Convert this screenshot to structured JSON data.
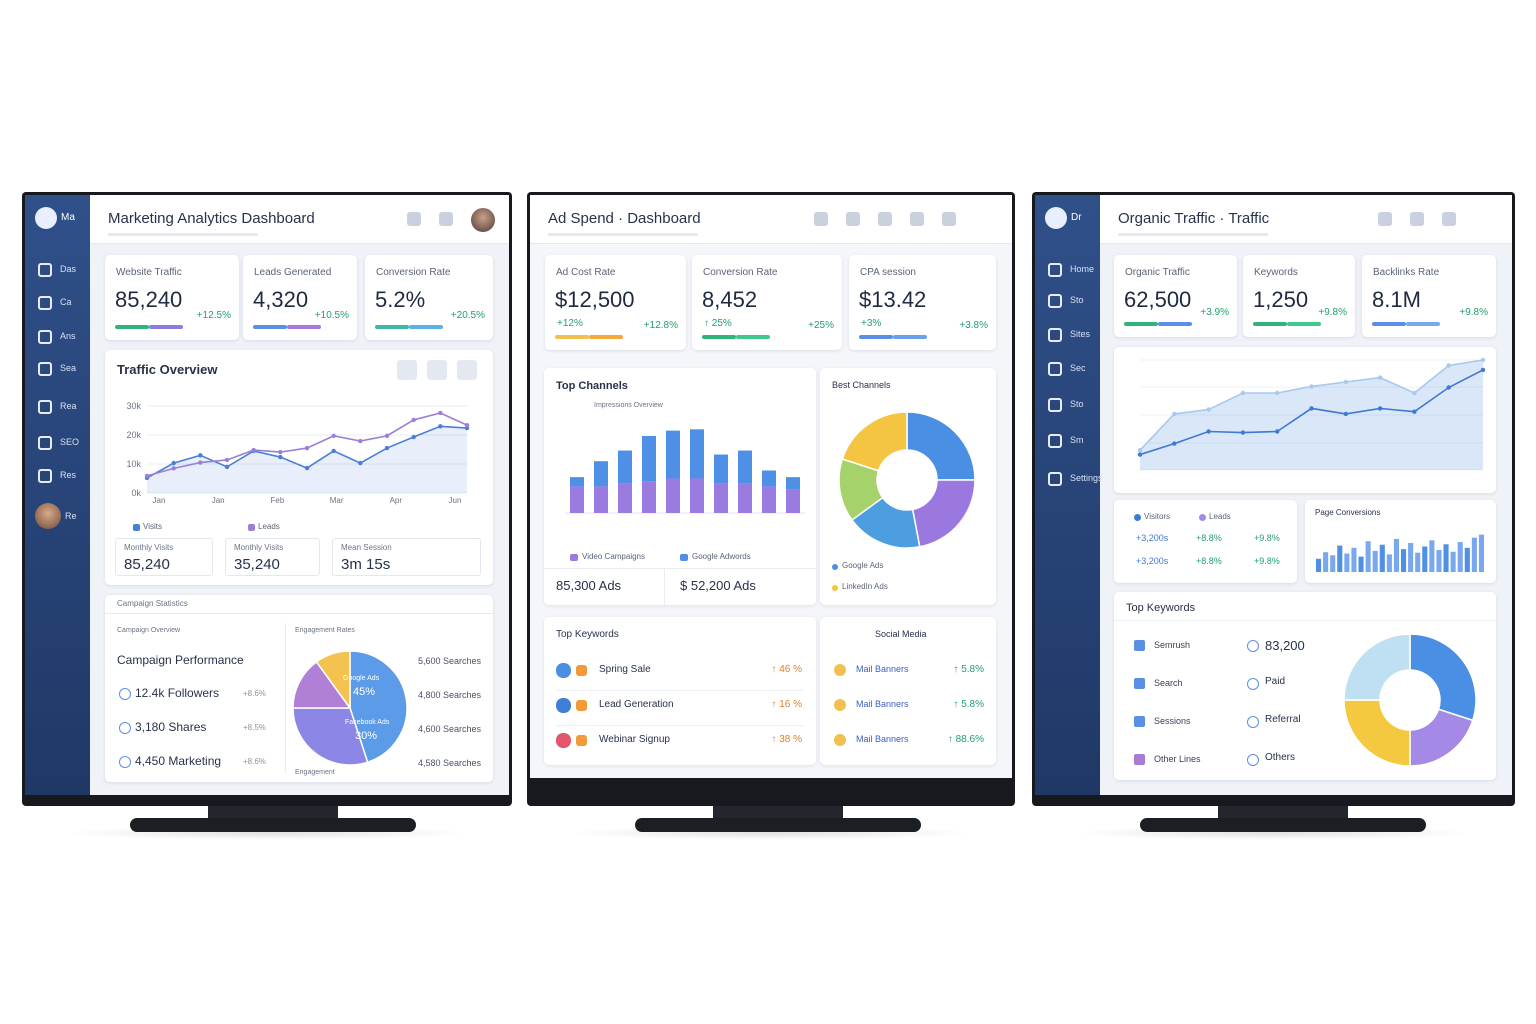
{
  "monitors": [
    {
      "logo": "Ma",
      "nav": [
        "Das",
        "Ca",
        "Ans",
        "Sea",
        "Rea",
        "SEO",
        "Res"
      ],
      "profile": "Re",
      "title": "Marketing Analytics Dashboard",
      "kpis": [
        {
          "label": "Website Traffic",
          "value": "85,240",
          "change": "+12.5%"
        },
        {
          "label": "Leads Generated",
          "value": "4,320",
          "change": "+10.5%"
        },
        {
          "label": "Conversion Rate",
          "value": "5.2%",
          "change": "+20.5%"
        }
      ],
      "traffic": {
        "title": "Traffic Overview",
        "ylim": [
          0,
          30000
        ],
        "yticks": [
          {
            "value": 30000,
            "label": "30k"
          },
          {
            "value": 20000,
            "label": "20k"
          },
          {
            "value": 10000,
            "label": "10k"
          },
          {
            "value": 0,
            "label": "0k"
          }
        ],
        "xlabels": [
          "Jan",
          "Jan",
          "Feb",
          "Mar",
          "Apr",
          "Jun"
        ],
        "series": [
          {
            "name": "Visits",
            "color": "#4a7fd6",
            "values": [
              5200,
              10300,
              13000,
              9000,
              14500,
              12400,
              8600,
              14500,
              10300,
              15500,
              19300,
              23000,
              22400
            ]
          },
          {
            "name": "Leads",
            "color": "#9b7fd8",
            "values": [
              5900,
              8500,
              10500,
              11400,
              14800,
              14100,
              15500,
              19700,
              17900,
              19700,
              25200,
              27600,
              23400
            ]
          }
        ]
      },
      "stats": [
        {
          "label": "Monthly Visits",
          "value": "85,240"
        },
        {
          "label": "Monthly Visits",
          "value": "35,240"
        },
        {
          "label": "Mean Session",
          "value": "3m 15s"
        }
      ],
      "campaign": {
        "header": "Campaign Statistics",
        "subtitle": "Campaign Overview",
        "title": "Campaign Performance",
        "items": [
          "12.4k Followers",
          "3,180 Shares",
          "4,450 Marketing"
        ],
        "item_changes": [
          "+8.6%",
          "+8.5%",
          "+8.6%"
        ],
        "pie_title": "Engagement Rates",
        "pie": {
          "names": [
            "Google Ads",
            "Facebook Ads",
            null,
            null
          ],
          "values": [
            45,
            30,
            15,
            10
          ],
          "value_labels": [
            "45%",
            "30%",
            null,
            null
          ],
          "colors": [
            "#5b9be8",
            "#8c86e6",
            "#b07fd6",
            "#f3c24f"
          ]
        },
        "searches": [
          "5,600 Searches",
          "4,800 Searches",
          "4,600 Searches",
          "4,580 Searches"
        ],
        "footer": "Engagement"
      }
    },
    {
      "title": "Ad Spend · Dashboard",
      "kpis": [
        {
          "label": "Ad Cost Rate",
          "value": "$12,500",
          "sub": "+12%",
          "change": "+12.8%"
        },
        {
          "label": "Conversion Rate",
          "value": "8,452",
          "sub": "↑ 25%",
          "change": "+25%"
        },
        {
          "label": "CPA session",
          "value": "$13.42",
          "sub": "+3%",
          "change": "+3.8%"
        }
      ],
      "channels": {
        "title": "Top Channels",
        "subtitle": "Impressions Overview",
        "ylim": [
          0,
          70
        ],
        "series": [
          {
            "name": "Video Campaigns",
            "color": "#9a7be0",
            "values": [
              20,
              20,
              22,
              24,
              26,
              26,
              22,
              22,
              20,
              18
            ]
          },
          {
            "name": "Google Adwords",
            "color": "#4f8fe6",
            "values": [
              7,
              19,
              25,
              34,
              36,
              37,
              22,
              25,
              12,
              9
            ]
          }
        ],
        "stats": [
          "85,300 Ads",
          "$ 52,200 Ads"
        ]
      },
      "best": {
        "title": "Best Channels",
        "values": [
          25,
          22,
          18,
          15,
          20
        ],
        "colors": [
          "#4a8fe3",
          "#9b78e0",
          "#4c9ee0",
          "#a5d26a",
          "#f4c542"
        ],
        "legend": [
          "Google Ads",
          "LinkedIn Ads"
        ]
      },
      "keywords": {
        "title": "Top Keywords",
        "rows": [
          {
            "name": "Spring Sale",
            "change": "↑ 46 %"
          },
          {
            "name": "Lead Generation",
            "change": "↑ 16 %"
          },
          {
            "name": "Webinar Signup",
            "change": "↑ 38 %"
          }
        ]
      },
      "social": {
        "title": "Social Media",
        "rows": [
          {
            "name": "Mail Banners",
            "change": "↑ 5.8%"
          },
          {
            "name": "Mail Banners",
            "change": "↑ 5.8%"
          },
          {
            "name": "Mail Banners",
            "change": "↑ 88.6%"
          }
        ]
      }
    },
    {
      "logo": "Dr",
      "nav": [
        "Home",
        "Sto",
        "Sites",
        "Sec",
        "Sto",
        "Sm",
        "Settings"
      ],
      "title": "Organic Traffic · Traffic",
      "kpis": [
        {
          "label": "Organic Traffic",
          "value": "62,500",
          "change": "+3.9%"
        },
        {
          "label": "Keywords",
          "value": "1,250",
          "change": "+9.8%"
        },
        {
          "label": "Backlinks Rate",
          "value": "8.1M",
          "change": "+9.8%"
        }
      ],
      "traffic": {
        "ylim": [
          0,
          100
        ],
        "series": [
          {
            "color": "#a8c8ee",
            "values": [
              18,
              51,
              55,
              70,
              70,
              76,
              80,
              84,
              70,
              95,
              100
            ]
          },
          {
            "color": "#3f79d4",
            "values": [
              14,
              24,
              35,
              34,
              35,
              56,
              51,
              56,
              53,
              75,
              91
            ]
          }
        ]
      },
      "legend": [
        "Visitors",
        "Leads"
      ],
      "rows": [
        [
          "+3,200s",
          "+8.8%",
          "+9.8%"
        ],
        [
          "+3,200s",
          "+8.8%",
          "+9.8%"
        ]
      ],
      "conversions": {
        "title": "Page Conversions",
        "ylim": [
          0,
          100
        ],
        "values": [
          30,
          45,
          38,
          60,
          42,
          55,
          35,
          70,
          48,
          62,
          40,
          75,
          52,
          66,
          44,
          58,
          72,
          50,
          63,
          46,
          68,
          55,
          78,
          85
        ]
      },
      "keywords": {
        "title": "Top Keywords",
        "left": [
          "Semrush",
          "Search",
          "Sessions",
          "Other Lines"
        ],
        "right": [
          "83,200",
          "Paid",
          "Referral",
          "Others"
        ],
        "donut": {
          "values": [
            30,
            20,
            25,
            25
          ],
          "colors": [
            "#4a8fe3",
            "#a48ae6",
            "#f4c93f",
            "#bfe0f2"
          ]
        }
      }
    }
  ]
}
